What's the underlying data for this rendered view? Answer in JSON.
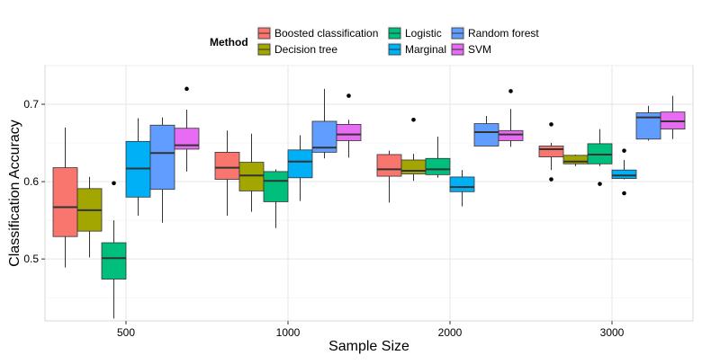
{
  "chart_data": {
    "type": "boxplot",
    "xlabel": "Sample Size",
    "ylabel": "Classification Accuracy",
    "categories": [
      "500",
      "1000",
      "2000",
      "3000"
    ],
    "ylim": [
      0.42,
      0.75
    ],
    "yticks": [
      0.5,
      0.6,
      0.7
    ],
    "grid": true,
    "legend": {
      "title": "Method",
      "position": "top"
    },
    "series": [
      {
        "name": "Boosted classification",
        "color": "#F8766D",
        "boxes": [
          {
            "min": 0.489,
            "q1": 0.529,
            "median": 0.567,
            "q3": 0.618,
            "max": 0.67,
            "outliers": []
          },
          {
            "min": 0.556,
            "q1": 0.603,
            "median": 0.618,
            "q3": 0.638,
            "max": 0.666,
            "outliers": []
          },
          {
            "min": 0.573,
            "q1": 0.607,
            "median": 0.616,
            "q3": 0.635,
            "max": 0.64,
            "outliers": []
          },
          {
            "min": 0.615,
            "q1": 0.632,
            "median": 0.642,
            "q3": 0.646,
            "max": 0.65,
            "outliers": [
              0.603,
              0.674
            ]
          }
        ]
      },
      {
        "name": "Decision tree",
        "color": "#A3A500",
        "boxes": [
          {
            "min": 0.502,
            "q1": 0.536,
            "median": 0.563,
            "q3": 0.591,
            "max": 0.606,
            "outliers": []
          },
          {
            "min": 0.561,
            "q1": 0.588,
            "median": 0.608,
            "q3": 0.625,
            "max": 0.662,
            "outliers": []
          },
          {
            "min": 0.601,
            "q1": 0.61,
            "median": 0.614,
            "q3": 0.628,
            "max": 0.636,
            "outliers": [
              0.68
            ]
          },
          {
            "min": 0.62,
            "q1": 0.623,
            "median": 0.626,
            "q3": 0.634,
            "max": 0.635,
            "outliers": []
          }
        ]
      },
      {
        "name": "Logistic",
        "color": "#00BF7D",
        "boxes": [
          {
            "min": 0.423,
            "q1": 0.474,
            "median": 0.501,
            "q3": 0.521,
            "max": 0.55,
            "outliers": [
              0.598
            ]
          },
          {
            "min": 0.54,
            "q1": 0.574,
            "median": 0.601,
            "q3": 0.613,
            "max": 0.616,
            "outliers": []
          },
          {
            "min": 0.605,
            "q1": 0.609,
            "median": 0.616,
            "q3": 0.63,
            "max": 0.658,
            "outliers": []
          },
          {
            "min": 0.62,
            "q1": 0.623,
            "median": 0.635,
            "q3": 0.649,
            "max": 0.668,
            "outliers": [
              0.597
            ]
          }
        ]
      },
      {
        "name": "Marginal",
        "color": "#00B0F6",
        "boxes": [
          {
            "min": 0.556,
            "q1": 0.58,
            "median": 0.617,
            "q3": 0.652,
            "max": 0.682,
            "outliers": []
          },
          {
            "min": 0.575,
            "q1": 0.605,
            "median": 0.626,
            "q3": 0.641,
            "max": 0.66,
            "outliers": []
          },
          {
            "min": 0.568,
            "q1": 0.587,
            "median": 0.593,
            "q3": 0.606,
            "max": 0.615,
            "outliers": []
          },
          {
            "min": 0.603,
            "q1": 0.604,
            "median": 0.608,
            "q3": 0.615,
            "max": 0.628,
            "outliers": [
              0.585,
              0.64
            ]
          }
        ]
      },
      {
        "name": "Random forest",
        "color": "#619CFF",
        "boxes": [
          {
            "min": 0.547,
            "q1": 0.59,
            "median": 0.637,
            "q3": 0.673,
            "max": 0.683,
            "outliers": []
          },
          {
            "min": 0.63,
            "q1": 0.638,
            "median": 0.644,
            "q3": 0.678,
            "max": 0.72,
            "outliers": []
          },
          {
            "min": 0.646,
            "q1": 0.646,
            "median": 0.664,
            "q3": 0.675,
            "max": 0.685,
            "outliers": []
          },
          {
            "min": 0.653,
            "q1": 0.655,
            "median": 0.683,
            "q3": 0.689,
            "max": 0.698,
            "outliers": []
          }
        ]
      },
      {
        "name": "SVM",
        "color": "#E76BF3",
        "boxes": [
          {
            "min": 0.613,
            "q1": 0.642,
            "median": 0.647,
            "q3": 0.669,
            "max": 0.693,
            "outliers": [
              0.72
            ]
          },
          {
            "min": 0.631,
            "q1": 0.653,
            "median": 0.661,
            "q3": 0.674,
            "max": 0.68,
            "outliers": [
              0.711
            ]
          },
          {
            "min": 0.645,
            "q1": 0.653,
            "median": 0.661,
            "q3": 0.666,
            "max": 0.694,
            "outliers": [
              0.717
            ]
          },
          {
            "min": 0.655,
            "q1": 0.668,
            "median": 0.678,
            "q3": 0.69,
            "max": 0.711,
            "outliers": []
          }
        ]
      }
    ]
  }
}
